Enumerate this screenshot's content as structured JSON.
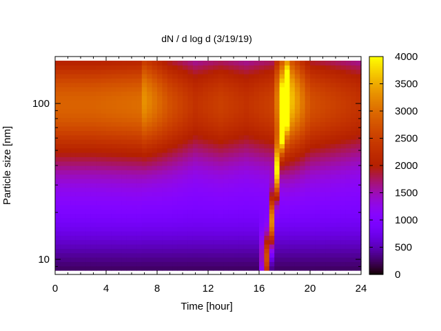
{
  "chart_data": {
    "type": "heatmap",
    "title": "dN / d log d (3/19/19)",
    "xlabel": "Time [hour]",
    "ylabel": "Particle size [nm]",
    "xlim": [
      0,
      24
    ],
    "ylim": [
      8,
      200
    ],
    "y_scale": "log",
    "x_ticks": [
      0,
      4,
      8,
      12,
      16,
      20,
      24
    ],
    "y_ticks": [
      10,
      100
    ],
    "colorbar": {
      "range": [
        0,
        4000
      ],
      "ticks": [
        0,
        500,
        1000,
        1500,
        2000,
        2500,
        3000,
        3500,
        4000
      ],
      "palette": "gnuplot-pm3d (black-purple-red-orange-yellow)"
    },
    "grid": false,
    "mode_diameter_nm": [
      {
        "time": 0,
        "d": 100,
        "peak": 2900
      },
      {
        "time": 3,
        "d": 100,
        "peak": 2900
      },
      {
        "time": 6.6,
        "d": 100,
        "peak": 3000
      },
      {
        "time": 7,
        "d": 105,
        "peak": 3300
      },
      {
        "time": 9,
        "d": 100,
        "peak": 2700
      },
      {
        "time": 11,
        "d": 100,
        "peak": 2300
      },
      {
        "time": 13,
        "d": 100,
        "peak": 2500
      },
      {
        "time": 15,
        "d": 100,
        "peak": 2300
      },
      {
        "time": 17,
        "d": 100,
        "peak": 2500
      },
      {
        "time": 18,
        "d": 110,
        "peak": 4000
      },
      {
        "time": 20,
        "d": 100,
        "peak": 2700
      },
      {
        "time": 22,
        "d": 100,
        "peak": 2500
      },
      {
        "time": 24,
        "d": 100,
        "peak": 2300
      }
    ],
    "growth_event": {
      "start_time": 16.7,
      "start_d": 10,
      "end_time": 18,
      "end_d": 110,
      "start_level": 2400
    }
  }
}
